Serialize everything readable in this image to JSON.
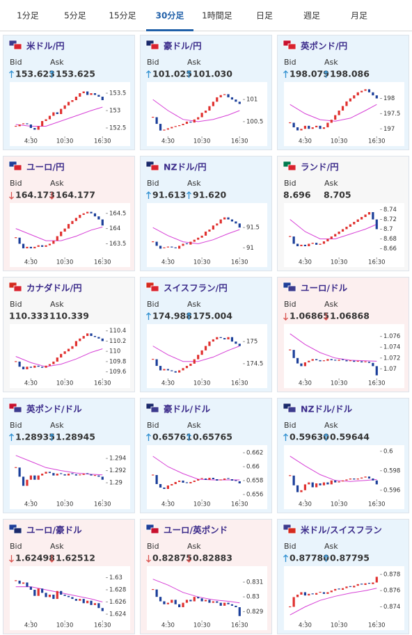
{
  "tabs": [
    "1分足",
    "5分足",
    "15分足",
    "30分足",
    "1時間足",
    "日足",
    "週足",
    "月足"
  ],
  "active_tab": 3,
  "bid_label": "Bid",
  "ask_label": "Ask",
  "chart_xticks": [
    {
      "value": 4,
      "label": "4:30"
    },
    {
      "value": 13,
      "label": "10:30"
    },
    {
      "value": 23,
      "label": "16:30"
    }
  ],
  "up_color": "#e0312f",
  "down_color": "#1c3f9a",
  "ma_color": "#d63fd6",
  "cards": [
    {
      "pair": "米ドル/円",
      "flags": [
        "#3c3b8e",
        "#d9232e"
      ],
      "trend": "up",
      "bid": "153.623",
      "ask": "153.625",
      "chart": {
        "ylim": [
          152.3,
          153.7
        ],
        "yticks": [
          152.5,
          153,
          153.5
        ],
        "values": [
          152.55,
          152.6,
          152.62,
          152.6,
          152.5,
          152.45,
          152.55,
          152.7,
          152.75,
          152.85,
          152.95,
          152.9,
          153.05,
          153.15,
          153.25,
          153.3,
          153.4,
          153.5,
          153.55,
          153.45,
          153.5,
          153.45,
          153.4,
          153.3
        ],
        "ma_x": [
          0,
          4,
          8,
          12,
          16,
          20,
          23
        ],
        "ma": [
          152.6,
          152.55,
          152.55,
          152.7,
          152.85,
          153.0,
          153.1
        ]
      }
    },
    {
      "pair": "豪ドル/円",
      "flags": [
        "#1a2a6c",
        "#d9232e"
      ],
      "trend": "up",
      "bid": "101.025",
      "ask": "101.030",
      "chart": {
        "ylim": [
          100.2,
          101.3
        ],
        "yticks": [
          100.5,
          101
        ],
        "values": [
          100.6,
          100.45,
          100.3,
          100.32,
          100.35,
          100.38,
          100.4,
          100.42,
          100.45,
          100.5,
          100.48,
          100.55,
          100.6,
          100.7,
          100.75,
          100.85,
          100.95,
          101.05,
          101.1,
          101.12,
          101.05,
          101.0,
          100.95,
          100.9
        ],
        "ma_x": [
          0,
          4,
          8,
          12,
          16,
          20,
          23
        ],
        "ma": [
          101.0,
          100.75,
          100.55,
          100.5,
          100.55,
          100.65,
          100.75
        ]
      }
    },
    {
      "pair": "英ポンド/円",
      "flags": [
        "#c8102e",
        "#d9232e"
      ],
      "trend": "up",
      "bid": "198.079",
      "ask": "198.086",
      "chart": {
        "ylim": [
          196.8,
          198.4
        ],
        "yticks": [
          197,
          197.5,
          198
        ],
        "values": [
          197.2,
          197.05,
          196.95,
          197.0,
          197.1,
          197.0,
          197.05,
          197.1,
          197.0,
          197.05,
          197.2,
          197.3,
          197.45,
          197.6,
          197.75,
          197.9,
          198.0,
          198.1,
          198.2,
          198.25,
          198.3,
          198.2,
          198.1,
          198.0
        ],
        "ma_x": [
          0,
          4,
          8,
          12,
          16,
          20,
          23
        ],
        "ma": [
          197.8,
          197.5,
          197.3,
          197.25,
          197.35,
          197.6,
          197.8
        ]
      }
    },
    {
      "pair": "ユーロ/円",
      "flags": [
        "#1f3f99",
        "#d9232e"
      ],
      "trend": "down",
      "bid": "164.173",
      "ask": "164.177",
      "chart": {
        "ylim": [
          163.1,
          164.7
        ],
        "yticks": [
          163.5,
          164,
          164.5
        ],
        "values": [
          163.7,
          163.5,
          163.35,
          163.4,
          163.35,
          163.4,
          163.45,
          163.4,
          163.45,
          163.5,
          163.6,
          163.75,
          163.9,
          164.0,
          164.15,
          164.25,
          164.35,
          164.45,
          164.5,
          164.55,
          164.5,
          164.4,
          164.3,
          164.1
        ],
        "ma_x": [
          0,
          4,
          8,
          12,
          16,
          20,
          23
        ],
        "ma": [
          164.0,
          163.8,
          163.6,
          163.6,
          163.75,
          163.95,
          164.05
        ]
      }
    },
    {
      "pair": "NZドル/円",
      "flags": [
        "#1a2a6c",
        "#d9232e"
      ],
      "trend": "up",
      "bid": "91.613",
      "ask": "91.620",
      "chart": {
        "ylim": [
          90.8,
          92.0
        ],
        "yticks": [
          91,
          91.5
        ],
        "values": [
          91.15,
          91.05,
          90.98,
          91.0,
          91.02,
          91.0,
          90.98,
          91.05,
          91.1,
          91.08,
          91.15,
          91.2,
          91.25,
          91.3,
          91.4,
          91.45,
          91.55,
          91.6,
          91.7,
          91.75,
          91.7,
          91.65,
          91.6,
          91.5
        ],
        "ma_x": [
          0,
          4,
          8,
          12,
          16,
          20,
          23
        ],
        "ma": [
          91.5,
          91.3,
          91.15,
          91.1,
          91.2,
          91.35,
          91.45
        ]
      }
    },
    {
      "pair": "ランド/円",
      "flags": [
        "#007a4d",
        "#d9232e"
      ],
      "trend": null,
      "bid": "8.696",
      "ask": "8.705",
      "chart": {
        "ylim": [
          8.645,
          8.745
        ],
        "yticks": [
          8.66,
          8.68,
          8.7,
          8.72,
          8.74
        ],
        "values": [
          8.685,
          8.67,
          8.665,
          8.668,
          8.665,
          8.67,
          8.672,
          8.668,
          8.67,
          8.675,
          8.68,
          8.685,
          8.69,
          8.695,
          8.7,
          8.705,
          8.71,
          8.715,
          8.72,
          8.725,
          8.73,
          8.735,
          8.72,
          8.7
        ],
        "ma_x": [
          0,
          4,
          8,
          12,
          16,
          20,
          23
        ],
        "ma": [
          8.72,
          8.695,
          8.68,
          8.68,
          8.69,
          8.7,
          8.71
        ]
      }
    },
    {
      "pair": "カナダドル/円",
      "flags": [
        "#d52b1e",
        "#d9232e"
      ],
      "trend": null,
      "bid": "110.333",
      "ask": "110.339",
      "chart": {
        "ylim": [
          109.5,
          110.45
        ],
        "yticks": [
          109.6,
          109.8,
          110,
          110.2,
          110.4
        ],
        "values": [
          109.8,
          109.7,
          109.65,
          109.7,
          109.68,
          109.72,
          109.7,
          109.68,
          109.72,
          109.75,
          109.8,
          109.88,
          109.95,
          110.0,
          110.05,
          110.1,
          110.2,
          110.25,
          110.3,
          110.35,
          110.3,
          110.28,
          110.25,
          110.2
        ],
        "ma_x": [
          0,
          4,
          8,
          12,
          16,
          20,
          23
        ],
        "ma": [
          109.9,
          109.78,
          109.7,
          109.75,
          109.85,
          109.98,
          110.05
        ]
      }
    },
    {
      "pair": "スイスフラン/円",
      "flags": [
        "#d52b1e",
        "#d9232e"
      ],
      "trend": "up",
      "bid": "174.988",
      "ask": "175.004",
      "chart": {
        "ylim": [
          174.2,
          175.3
        ],
        "yticks": [
          174.5,
          175
        ],
        "values": [
          174.6,
          174.45,
          174.35,
          174.38,
          174.35,
          174.33,
          174.3,
          174.35,
          174.4,
          174.45,
          174.5,
          174.6,
          174.7,
          174.8,
          174.9,
          175.0,
          175.05,
          175.1,
          175.08,
          175.05,
          175.1,
          175.0,
          174.95,
          174.9
        ],
        "ma_x": [
          0,
          4,
          8,
          12,
          16,
          20,
          23
        ],
        "ma": [
          174.9,
          174.7,
          174.55,
          174.55,
          174.65,
          174.8,
          174.9
        ]
      }
    },
    {
      "pair": "ユーロ/ドル",
      "flags": [
        "#1f3f99",
        "#3c3b8e"
      ],
      "trend": "down",
      "bid": "1.06865",
      "ask": "1.06868",
      "chart": {
        "ylim": [
          1.0685,
          1.0775
        ],
        "yticks": [
          1.07,
          1.072,
          1.074,
          1.076
        ],
        "values": [
          1.0735,
          1.072,
          1.071,
          1.0705,
          1.0712,
          1.0715,
          1.0718,
          1.0716,
          1.0714,
          1.0715,
          1.0718,
          1.0716,
          1.0715,
          1.0717,
          1.0716,
          1.0714,
          1.0715,
          1.0713,
          1.0714,
          1.0712,
          1.0713,
          1.0711,
          1.0705,
          1.0688
        ],
        "ma_x": [
          0,
          4,
          8,
          12,
          16,
          20,
          23
        ],
        "ma": [
          1.0765,
          1.0745,
          1.073,
          1.072,
          1.0716,
          1.0715,
          1.0714
        ]
      }
    },
    {
      "pair": "英ポンド/ドル",
      "flags": [
        "#c8102e",
        "#3c3b8e"
      ],
      "trend": "up",
      "bid": "1.28935",
      "ask": "1.28945",
      "chart": {
        "ylim": [
          1.2875,
          1.2955
        ],
        "yticks": [
          1.29,
          1.292,
          1.294
        ],
        "values": [
          1.2925,
          1.291,
          1.2895,
          1.2905,
          1.2912,
          1.2905,
          1.2912,
          1.2915,
          1.2918,
          1.2916,
          1.2912,
          1.2915,
          1.2914,
          1.2912,
          1.2915,
          1.2914,
          1.2912,
          1.2913,
          1.2915,
          1.2914,
          1.2912,
          1.2912,
          1.291,
          1.2905
        ],
        "ma_x": [
          0,
          4,
          8,
          12,
          16,
          20,
          23
        ],
        "ma": [
          1.2945,
          1.2935,
          1.2925,
          1.292,
          1.2916,
          1.2914,
          1.2913
        ]
      }
    },
    {
      "pair": "豪ドル/ドル",
      "flags": [
        "#1a2a6c",
        "#3c3b8e"
      ],
      "trend": "up",
      "bid": "0.65761",
      "ask": "0.65765",
      "chart": {
        "ylim": [
          0.6555,
          0.6625
        ],
        "yticks": [
          0.656,
          0.658,
          0.66,
          0.662
        ],
        "values": [
          0.6588,
          0.6575,
          0.657,
          0.6568,
          0.6573,
          0.6575,
          0.6578,
          0.658,
          0.6577,
          0.6576,
          0.6578,
          0.658,
          0.6582,
          0.6583,
          0.6581,
          0.6584,
          0.6582,
          0.658,
          0.6581,
          0.6583,
          0.6582,
          0.658,
          0.6579,
          0.6576
        ],
        "ma_x": [
          0,
          4,
          8,
          12,
          16,
          20,
          23
        ],
        "ma": [
          0.6615,
          0.66,
          0.659,
          0.6582,
          0.6581,
          0.6581,
          0.6581
        ]
      }
    },
    {
      "pair": "NZドル/ドル",
      "flags": [
        "#1a2a6c",
        "#3c3b8e"
      ],
      "trend": "up",
      "bid": "0.59630",
      "ask": "0.59644",
      "chart": {
        "ylim": [
          0.5952,
          0.6002
        ],
        "yticks": [
          0.596,
          0.598,
          0.6
        ],
        "values": [
          0.5975,
          0.5965,
          0.5958,
          0.596,
          0.5966,
          0.5968,
          0.5963,
          0.5967,
          0.5965,
          0.5968,
          0.5966,
          0.597,
          0.5968,
          0.5969,
          0.597,
          0.5971,
          0.5972,
          0.5971,
          0.5972,
          0.5973,
          0.5974,
          0.5972,
          0.597,
          0.5966
        ],
        "ma_x": [
          0,
          4,
          8,
          12,
          16,
          20,
          23
        ],
        "ma": [
          0.5995,
          0.5985,
          0.5976,
          0.597,
          0.5969,
          0.597,
          0.5971
        ]
      }
    },
    {
      "pair": "ユーロ/豪ドル",
      "flags": [
        "#1f3f99",
        "#1a2a6c"
      ],
      "trend": "down",
      "bid": "1.62498",
      "ask": "1.62512",
      "chart": {
        "ylim": [
          1.6232,
          1.6312
        ],
        "yticks": [
          1.624,
          1.626,
          1.628,
          1.63
        ],
        "values": [
          1.6295,
          1.629,
          1.6292,
          1.6285,
          1.628,
          1.627,
          1.6282,
          1.6275,
          1.6268,
          1.6272,
          1.6265,
          1.6278,
          1.6272,
          1.627,
          1.6268,
          1.6265,
          1.6262,
          1.6265,
          1.6258,
          1.6262,
          1.6255,
          1.6258,
          1.625,
          1.6245
        ],
        "ma_x": [
          0,
          4,
          8,
          12,
          16,
          20,
          23
        ],
        "ma": [
          1.6285,
          1.6285,
          1.628,
          1.6275,
          1.627,
          1.6265,
          1.626
        ]
      }
    },
    {
      "pair": "ユーロ/英ポンド",
      "flags": [
        "#1f3f99",
        "#c8102e"
      ],
      "trend": "down",
      "bid": "0.82875",
      "ask": "0.82883",
      "chart": {
        "ylim": [
          0.8285,
          0.8318
        ],
        "yticks": [
          0.829,
          0.83,
          0.831
        ],
        "values": [
          0.8305,
          0.83,
          0.8297,
          0.8295,
          0.8296,
          0.8298,
          0.8295,
          0.8293,
          0.8296,
          0.8298,
          0.8297,
          0.83,
          0.8299,
          0.8297,
          0.8298,
          0.8296,
          0.8297,
          0.8296,
          0.8294,
          0.8296,
          0.8295,
          0.8294,
          0.8293,
          0.8287
        ],
        "ma_x": [
          0,
          4,
          8,
          12,
          16,
          20,
          23
        ],
        "ma": [
          0.8312,
          0.8308,
          0.8303,
          0.83,
          0.8298,
          0.8297,
          0.8296
        ]
      }
    },
    {
      "pair": "米ドル/スイスフラン",
      "flags": [
        "#3c3b8e",
        "#d52b1e"
      ],
      "trend": "up",
      "bid": "0.87780",
      "ask": "0.87795",
      "chart": {
        "ylim": [
          0.8725,
          0.8785
        ],
        "yticks": [
          0.874,
          0.876,
          0.878
        ],
        "values": [
          0.874,
          0.8752,
          0.8755,
          0.8758,
          0.8754,
          0.8756,
          0.8755,
          0.8757,
          0.8758,
          0.8756,
          0.8758,
          0.876,
          0.8762,
          0.8761,
          0.8763,
          0.8765,
          0.8764,
          0.8766,
          0.8768,
          0.8767,
          0.8769,
          0.8768,
          0.877,
          0.8777
        ],
        "ma_x": [
          0,
          4,
          8,
          12,
          16,
          20,
          23
        ],
        "ma": [
          0.873,
          0.874,
          0.8748,
          0.8753,
          0.8757,
          0.876,
          0.8763
        ]
      }
    }
  ]
}
